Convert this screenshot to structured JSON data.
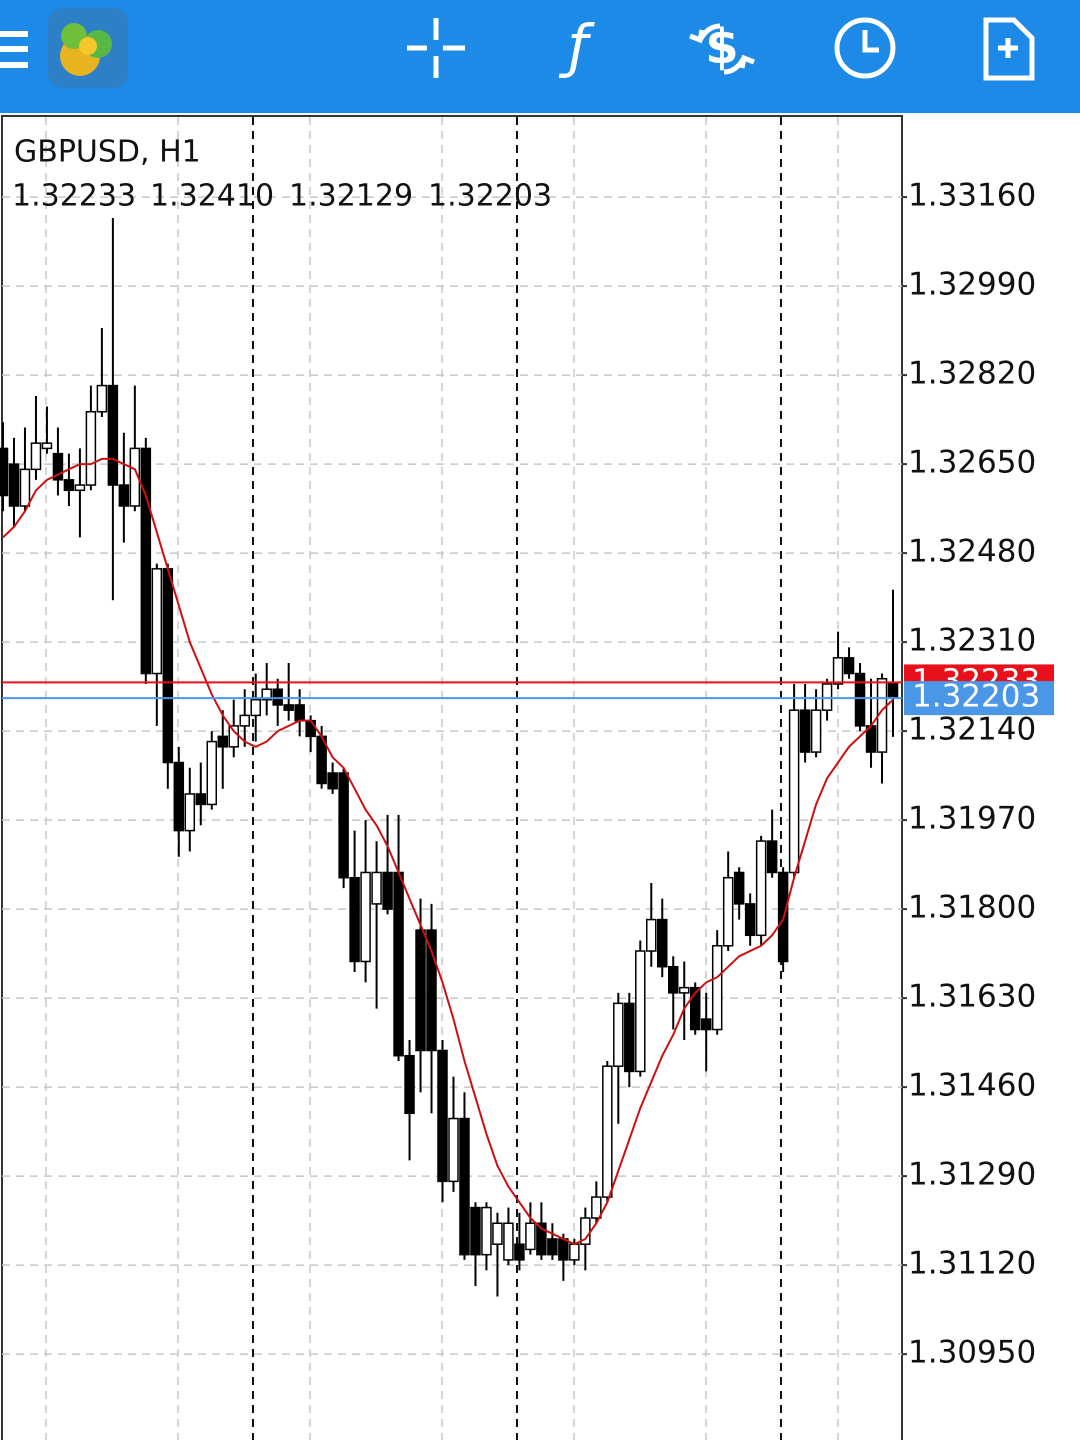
{
  "chart_data": {
    "type": "candlestick",
    "title": "GBPUSD, H1",
    "ohlc_labels": [
      "1.32233",
      "1.32410",
      "1.32129",
      "1.32203"
    ],
    "open": [
      1.3268,
      1.3265,
      1.3257,
      1.3264,
      1.3268,
      1.3267,
      1.3262,
      1.326,
      1.3261,
      1.3275,
      1.328,
      1.3261,
      1.3257,
      1.3268,
      1.3225,
      1.3245,
      1.3208,
      1.3195,
      1.3202,
      1.32,
      1.3213,
      1.3211,
      1.3215,
      1.3217,
      1.322,
      1.3222,
      1.3219,
      1.3219,
      1.3216,
      1.3213,
      1.3206,
      1.3206,
      1.3186,
      1.317,
      1.3181,
      1.3187,
      1.3187,
      1.3152,
      1.3176,
      1.3176,
      1.3153,
      1.3128,
      1.314,
      1.3123,
      1.3114,
      1.3116,
      1.3113,
      1.3116,
      1.3115,
      1.312,
      1.3117,
      1.3117,
      1.3113,
      1.3116,
      1.3121,
      1.3125,
      1.315,
      1.3162,
      1.3149,
      1.3172,
      1.3178,
      1.3169,
      1.3164,
      1.3165,
      1.3159,
      1.3157,
      1.3173,
      1.3187,
      1.3181,
      1.3175,
      1.3193,
      1.3187,
      1.3187,
      1.3218,
      1.321,
      1.3218,
      1.3223,
      1.3228,
      1.3225,
      1.3215,
      1.321,
      1.32233
    ],
    "high": [
      1.3273,
      1.327,
      1.3272,
      1.3278,
      1.3276,
      1.3272,
      1.3267,
      1.3268,
      1.328,
      1.3291,
      1.3312,
      1.3271,
      1.328,
      1.327,
      1.3246,
      1.3246,
      1.3211,
      1.3207,
      1.3208,
      1.3214,
      1.3218,
      1.322,
      1.3222,
      1.3225,
      1.3227,
      1.3224,
      1.3227,
      1.3222,
      1.3217,
      1.3215,
      1.3208,
      1.3207,
      1.3195,
      1.3197,
      1.3193,
      1.3198,
      1.3198,
      1.3155,
      1.3182,
      1.3181,
      1.3155,
      1.3148,
      1.3145,
      1.3124,
      1.3124,
      1.3122,
      1.3123,
      1.3122,
      1.3124,
      1.3124,
      1.312,
      1.3118,
      1.3117,
      1.3123,
      1.3128,
      1.3151,
      1.3164,
      1.3164,
      1.3174,
      1.3185,
      1.3182,
      1.3171,
      1.317,
      1.3166,
      1.3164,
      1.3176,
      1.3191,
      1.3188,
      1.3183,
      1.3194,
      1.3199,
      1.3188,
      1.3223,
      1.3223,
      1.3222,
      1.3224,
      1.3233,
      1.323,
      1.3227,
      1.3224,
      1.3225,
      1.3241
    ],
    "low": [
      1.3256,
      1.3253,
      1.3256,
      1.3262,
      1.3267,
      1.3259,
      1.3257,
      1.3251,
      1.326,
      1.3274,
      1.3239,
      1.325,
      1.3256,
      1.3223,
      1.3215,
      1.3203,
      1.319,
      1.3191,
      1.3196,
      1.3199,
      1.3203,
      1.3209,
      1.3211,
      1.3212,
      1.3217,
      1.3215,
      1.3216,
      1.3213,
      1.321,
      1.3203,
      1.3202,
      1.3184,
      1.3168,
      1.3166,
      1.3161,
      1.3179,
      1.3151,
      1.3132,
      1.3145,
      1.3141,
      1.3124,
      1.3126,
      1.3113,
      1.3108,
      1.3111,
      1.3106,
      1.3112,
      1.3111,
      1.3114,
      1.3113,
      1.3113,
      1.3109,
      1.3112,
      1.3111,
      1.312,
      1.3124,
      1.3139,
      1.3146,
      1.3148,
      1.3169,
      1.3167,
      1.3157,
      1.3155,
      1.3156,
      1.3149,
      1.3156,
      1.3172,
      1.3178,
      1.3173,
      1.3173,
      1.3186,
      1.3168,
      1.3186,
      1.3208,
      1.3209,
      1.3216,
      1.3222,
      1.3224,
      1.3214,
      1.3207,
      1.3204,
      1.32129
    ],
    "close": [
      1.3259,
      1.3257,
      1.3264,
      1.3269,
      1.3269,
      1.3262,
      1.326,
      1.3261,
      1.3275,
      1.328,
      1.3261,
      1.3257,
      1.3268,
      1.3225,
      1.3245,
      1.3208,
      1.3195,
      1.3202,
      1.32,
      1.3212,
      1.3211,
      1.3215,
      1.3217,
      1.322,
      1.3222,
      1.3219,
      1.3218,
      1.3216,
      1.3213,
      1.3204,
      1.3203,
      1.3186,
      1.317,
      1.3187,
      1.3187,
      1.318,
      1.3152,
      1.3141,
      1.3153,
      1.3153,
      1.3128,
      1.314,
      1.3114,
      1.3114,
      1.3123,
      1.312,
      1.312,
      1.3113,
      1.312,
      1.3114,
      1.3114,
      1.3113,
      1.3116,
      1.3121,
      1.3125,
      1.315,
      1.3162,
      1.3149,
      1.3172,
      1.3178,
      1.3169,
      1.3164,
      1.3165,
      1.3157,
      1.3157,
      1.3173,
      1.3186,
      1.3181,
      1.3175,
      1.3193,
      1.3187,
      1.317,
      1.3218,
      1.321,
      1.3218,
      1.3223,
      1.3228,
      1.3225,
      1.3215,
      1.321,
      1.3224,
      1.32203
    ],
    "ma_values": [
      1.3251,
      1.3253,
      1.3256,
      1.326,
      1.3262,
      1.3263,
      1.3264,
      1.3265,
      1.3265,
      1.3266,
      1.3266,
      1.3265,
      1.3264,
      1.3259,
      1.3252,
      1.3245,
      1.3238,
      1.3231,
      1.3226,
      1.3221,
      1.3217,
      1.3214,
      1.3212,
      1.3211,
      1.3212,
      1.3214,
      1.3215,
      1.3216,
      1.3216,
      1.3213,
      1.3209,
      1.3207,
      1.3203,
      1.3199,
      1.3196,
      1.3192,
      1.3187,
      1.3182,
      1.3177,
      1.3172,
      1.3166,
      1.3159,
      1.3151,
      1.3144,
      1.3137,
      1.3131,
      1.3127,
      1.3124,
      1.3121,
      1.3119,
      1.3118,
      1.3117,
      1.3116,
      1.3117,
      1.312,
      1.3124,
      1.313,
      1.3136,
      1.3142,
      1.3147,
      1.3152,
      1.3156,
      1.3161,
      1.3164,
      1.3166,
      1.3167,
      1.3169,
      1.3171,
      1.3172,
      1.3173,
      1.3175,
      1.3178,
      1.3186,
      1.3193,
      1.32,
      1.3205,
      1.3208,
      1.3211,
      1.3213,
      1.3215,
      1.3218,
      1.322
    ],
    "ma_color": "#cc1010",
    "up_color": "#ffffff",
    "down_color": "#000000",
    "ask": 1.32233,
    "ask_color": "#e8101a",
    "bid": 1.32203,
    "bid_color": "#4a97e8",
    "ylim": [
      1.30786,
      1.33313
    ],
    "yticks": [
      {
        "value": 1.3316,
        "label": "1.33160"
      },
      {
        "value": 1.3299,
        "label": "1.32990"
      },
      {
        "value": 1.3282,
        "label": "1.32820"
      },
      {
        "value": 1.3265,
        "label": "1.32650"
      },
      {
        "value": 1.3248,
        "label": "1.32480"
      },
      {
        "value": 1.3231,
        "label": "1.32310"
      },
      {
        "value": 1.3214,
        "label": "1.32140"
      },
      {
        "value": 1.3197,
        "label": "1.31970"
      },
      {
        "value": 1.318,
        "label": "1.31800"
      },
      {
        "value": 1.3163,
        "label": "1.31630"
      },
      {
        "value": 1.3146,
        "label": "1.31460"
      },
      {
        "value": 1.3129,
        "label": "1.31290"
      },
      {
        "value": 1.3112,
        "label": "1.31120"
      },
      {
        "value": 1.3095,
        "label": "1.30950"
      }
    ],
    "grid": true
  }
}
